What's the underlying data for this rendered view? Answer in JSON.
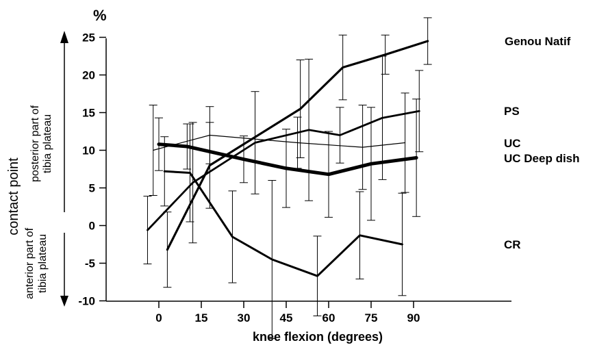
{
  "chart_data": {
    "type": "line",
    "unit": "%",
    "xlabel": "knee flexion (degrees)",
    "ylabel": "contact point",
    "y_upper_label": [
      "posterior part of",
      "tibia plateau"
    ],
    "y_lower_label": [
      "anterior part of",
      "tibia plateau"
    ],
    "xlim": [
      -12,
      100
    ],
    "ylim": [
      -10,
      25
    ],
    "x_ticks": [
      "0",
      "15",
      "30",
      "45",
      "60",
      "75",
      "90"
    ],
    "x_tick_values": [
      0,
      15,
      30,
      45,
      60,
      75,
      90
    ],
    "y_ticks": [
      "25",
      "20",
      "15",
      "10",
      "5",
      "0",
      "-5",
      "-10"
    ],
    "y_tick_values": [
      25,
      20,
      15,
      10,
      5,
      0,
      -5,
      -10
    ],
    "grid": false,
    "legend": "labels at right end of each series",
    "series": [
      {
        "name": "Genou Natif",
        "x": [
          3,
          18,
          50,
          65,
          80,
          95
        ],
        "y": [
          -3.2,
          8,
          15.5,
          21,
          22.7,
          24.5
        ],
        "err": [
          5,
          5.7,
          6.5,
          4.3,
          2.6,
          3.1
        ],
        "line_width": 3.2
      },
      {
        "name": "PS",
        "x": [
          -4,
          12,
          34,
          53,
          64,
          79,
          92
        ],
        "y": [
          -0.6,
          5.7,
          11,
          12.7,
          12,
          14.3,
          15.2
        ],
        "err": [
          4.5,
          8,
          6.8,
          9.4,
          3.7,
          8.2,
          5.4
        ],
        "line_width": 2.8
      },
      {
        "name": "UC",
        "x": [
          -2,
          18,
          49,
          72,
          87
        ],
        "y": [
          10,
          12,
          11,
          10.4,
          11
        ],
        "err": [
          6,
          3.8,
          3.4,
          5.6,
          6.6
        ],
        "line_width": 1.2
      },
      {
        "name": "UC Deep dish",
        "x": [
          0,
          10,
          30,
          45,
          60,
          75,
          91
        ],
        "y": [
          10.8,
          10.5,
          8.8,
          7.6,
          6.8,
          8.2,
          9
        ],
        "err": [
          3.5,
          3,
          3.1,
          5.2,
          5.7,
          7.5,
          7.8
        ],
        "line_width": 5
      },
      {
        "name": "CR",
        "x": [
          2,
          11,
          26,
          40,
          56,
          71,
          86
        ],
        "y": [
          7.2,
          7,
          -1.5,
          -4.5,
          -6.7,
          -1.3,
          -2.5
        ],
        "err": [
          4.6,
          6.5,
          6.1,
          10.5,
          5.3,
          5.8,
          6.8
        ],
        "line_width": 3
      }
    ]
  }
}
